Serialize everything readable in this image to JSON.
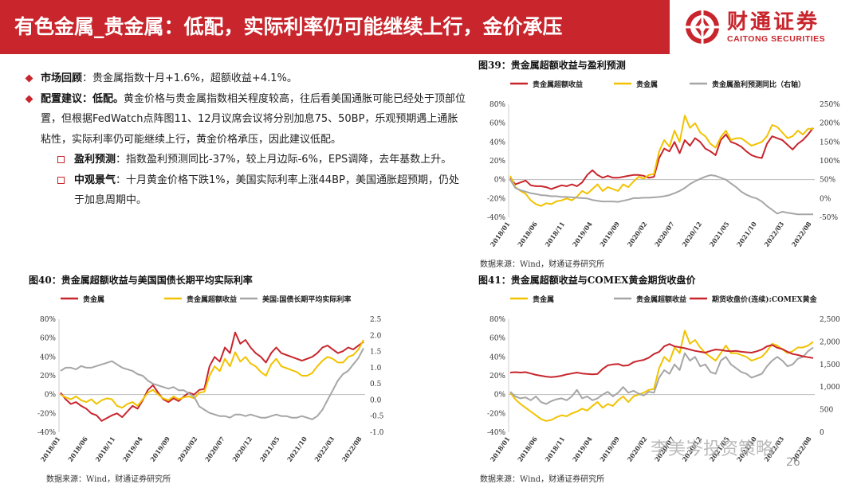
{
  "header": {
    "title": "有色金属_贵金属：低配，实际利率仍可能继续上行，金价承压",
    "logo_cn": "财通证券",
    "logo_en": "CAITONG SECURITIES",
    "bg_color": "#c8252c"
  },
  "text": {
    "b1_label": "市场回顾",
    "b1_text": "：贵金属指数十月+1.6%，超额收益+4.1%。",
    "b2_label": "配置建议：低配。",
    "b2_text": "黄金价格与贵金属指数相关程度较高，往后看美国通胀可能已经处于顶部位置，但根据FedWatch点阵图11、12月议席会议将分别加息75、50BP，乐观预期遇上通胀粘性，实际利率仍可能继续上行，黄金价格承压，因此建议低配。",
    "s1_label": "盈利预测",
    "s1_text": "：指数盈利预测同比-37%，较上月边际-6%，EPS调降，去年基数上升。",
    "s2_label": "中观景气",
    "s2_text": "：十月黄金价格下跌1%，美国实际利率上涨44BP，美国通胀超预期，仍处于加息周期中。"
  },
  "colors": {
    "red": "#c8252c",
    "gold": "#f2c200",
    "gray": "#a6a6a6"
  },
  "x_ticks": [
    "2018/01",
    "2018/06",
    "2018/11",
    "2019/04",
    "2019/09",
    "2020/02",
    "2020/07",
    "2020/12",
    "2021/05",
    "2021/10",
    "2022/03",
    "2022/08"
  ],
  "chart_data": [
    {
      "type": "line",
      "title": "图39：贵金属超额收益与盈利预测",
      "source": "数据来源：Wind，财通证券研究所",
      "x_ticks": [
        "2018/01",
        "2018/06",
        "2018/11",
        "2019/04",
        "2019/09",
        "2020/02",
        "2020/07",
        "2020/12",
        "2021/05",
        "2021/10",
        "2022/03",
        "2022/08"
      ],
      "ylim": [
        -40,
        80
      ],
      "y_ticks": [
        "80%",
        "60%",
        "40%",
        "20%",
        "0%",
        "-20%",
        "-40%"
      ],
      "y2lim": [
        -50,
        250
      ],
      "y2_ticks": [
        "250%",
        "200%",
        "150%",
        "100%",
        "50%",
        "0%",
        "-50%"
      ],
      "series": [
        {
          "name": "贵金属超额收益",
          "color": "#c8252c",
          "axis": "left",
          "values": [
            2,
            -5,
            -3,
            -1,
            -6,
            -7,
            -7,
            -8,
            -10,
            -8,
            -6,
            -7,
            -5,
            -7,
            -3,
            5,
            10,
            5,
            2,
            4,
            2,
            2,
            3,
            4,
            5,
            5,
            4,
            2,
            3,
            23,
            33,
            30,
            40,
            28,
            42,
            36,
            44,
            40,
            33,
            30,
            26,
            42,
            48,
            40,
            38,
            35,
            30,
            26,
            24,
            23,
            38,
            46,
            44,
            42,
            37,
            32,
            38,
            42,
            48,
            55
          ]
        },
        {
          "name": "贵金属",
          "color": "#f2c200",
          "axis": "left",
          "values": [
            4,
            -8,
            -12,
            -15,
            -22,
            -26,
            -28,
            -25,
            -26,
            -23,
            -22,
            -20,
            -22,
            -18,
            -12,
            -15,
            -10,
            -5,
            -12,
            -8,
            -10,
            -12,
            -5,
            -8,
            -2,
            3,
            1,
            5,
            6,
            30,
            42,
            35,
            52,
            40,
            68,
            55,
            60,
            50,
            46,
            38,
            34,
            45,
            52,
            42,
            44,
            44,
            40,
            36,
            38,
            40,
            46,
            58,
            56,
            50,
            44,
            46,
            52,
            48,
            54,
            54
          ]
        },
        {
          "name": "贵金属盈利预测同比（右轴）",
          "color": "#a6a6a6",
          "axis": "right",
          "values": [
            50,
            28,
            22,
            18,
            14,
            12,
            9,
            8,
            6,
            6,
            4,
            4,
            3,
            2,
            1,
            0,
            -4,
            -6,
            -8,
            -8,
            -8,
            -9,
            -6,
            -3,
            1,
            1,
            2,
            2,
            3,
            4,
            6,
            9,
            14,
            20,
            28,
            38,
            46,
            52,
            58,
            62,
            60,
            55,
            50,
            40,
            30,
            18,
            10,
            4,
            0,
            -8,
            -20,
            -30,
            -40,
            -35,
            -38,
            -40,
            -42,
            -42,
            -42,
            -42
          ]
        }
      ]
    },
    {
      "type": "line",
      "title": "图40：贵金属超额收益与美国国债长期平均实际利率",
      "source": "数据来源：Wind，财通证券研究所",
      "x_ticks": [
        "2018/01",
        "2018/06",
        "2018/11",
        "2019/04",
        "2019/09",
        "2020/02",
        "2020/07",
        "2020/12",
        "2021/05",
        "2021/10",
        "2022/03",
        "2022/08"
      ],
      "ylim": [
        -40,
        80
      ],
      "y_ticks": [
        "80%",
        "60%",
        "40%",
        "20%",
        "0%",
        "-20%",
        "-40%"
      ],
      "y2lim": [
        -1.0,
        2.5
      ],
      "y2_ticks": [
        "2.5",
        "2.0",
        "1.5",
        "1.0",
        "0.5",
        "0.0",
        "-0.5",
        "-1.0"
      ],
      "series": [
        {
          "name": "贵金属",
          "color": "#c8252c",
          "axis": "left",
          "values": [
            2,
            -5,
            -10,
            -8,
            -12,
            -15,
            -20,
            -22,
            -28,
            -25,
            -22,
            -20,
            -24,
            -18,
            -12,
            -15,
            -6,
            5,
            10,
            2,
            -5,
            -8,
            -4,
            -7,
            -2,
            2,
            0,
            5,
            6,
            30,
            40,
            35,
            50,
            44,
            66,
            54,
            58,
            50,
            44,
            40,
            34,
            44,
            50,
            44,
            42,
            40,
            38,
            36,
            38,
            40,
            44,
            50,
            52,
            48,
            44,
            46,
            50,
            48,
            52,
            56
          ]
        },
        {
          "name": "贵金属超额收益",
          "color": "#f2c200",
          "axis": "left",
          "values": [
            0,
            -3,
            -5,
            -2,
            -6,
            -8,
            -5,
            -10,
            -6,
            -4,
            -5,
            -12,
            -14,
            -10,
            -8,
            -12,
            -5,
            2,
            5,
            0,
            -4,
            -6,
            -2,
            -5,
            -3,
            -2,
            -4,
            2,
            3,
            20,
            30,
            25,
            38,
            30,
            45,
            35,
            40,
            33,
            30,
            24,
            20,
            32,
            38,
            30,
            28,
            26,
            24,
            20,
            20,
            23,
            30,
            36,
            40,
            38,
            34,
            34,
            40,
            42,
            48,
            58
          ]
        },
        {
          "name": "美国:国债长期平均实际利率",
          "color": "#a6a6a6",
          "axis": "right",
          "values": [
            0.9,
            1.0,
            1.0,
            0.95,
            1.05,
            1.0,
            1.0,
            1.05,
            1.1,
            1.15,
            1.2,
            1.1,
            1.0,
            0.95,
            0.9,
            0.8,
            0.75,
            0.6,
            0.5,
            0.45,
            0.4,
            0.35,
            0.4,
            0.3,
            0.3,
            0.2,
            0.1,
            -0.2,
            -0.3,
            -0.4,
            -0.45,
            -0.5,
            -0.5,
            -0.55,
            -0.45,
            -0.45,
            -0.5,
            -0.45,
            -0.5,
            -0.55,
            -0.55,
            -0.5,
            -0.45,
            -0.5,
            -0.5,
            -0.55,
            -0.55,
            -0.5,
            -0.55,
            -0.6,
            -0.5,
            -0.3,
            0.0,
            0.3,
            0.6,
            0.8,
            0.9,
            1.1,
            1.3,
            1.6
          ]
        }
      ]
    },
    {
      "type": "line",
      "title": "图41：贵金属超额收益与COMEX黄金期货收盘价",
      "source": "数据来源：Wind，财通证券研究所",
      "x_ticks": [
        "2018/01",
        "2018/06",
        "2018/11",
        "2019/04",
        "2019/09",
        "2020/02",
        "2020/07",
        "2020/12",
        "2021/05",
        "2021/10",
        "2022/03",
        "2022/08"
      ],
      "ylim": [
        -40,
        80
      ],
      "y_ticks": [
        "80%",
        "60%",
        "40%",
        "20%",
        "0%",
        "-20%",
        "-40%"
      ],
      "y2lim": [
        0,
        2500
      ],
      "y2_ticks": [
        "2,500",
        "2,000",
        "1,500",
        "1,000",
        "500",
        "0"
      ],
      "series": [
        {
          "name": "贵金属",
          "color": "#f2c200",
          "axis": "left",
          "values": [
            2,
            -5,
            -10,
            -14,
            -18,
            -22,
            -26,
            -28,
            -27,
            -24,
            -22,
            -23,
            -20,
            -18,
            -15,
            -17,
            -12,
            -8,
            -14,
            -10,
            -12,
            -6,
            -2,
            -8,
            -2,
            0,
            2,
            5,
            6,
            28,
            40,
            35,
            50,
            44,
            68,
            54,
            58,
            50,
            44,
            40,
            36,
            44,
            52,
            44,
            44,
            42,
            40,
            36,
            38,
            40,
            46,
            54,
            52,
            48,
            44,
            46,
            50,
            50,
            52,
            56
          ]
        },
        {
          "name": "贵金属超额收益",
          "color": "#a6a6a6",
          "axis": "left",
          "values": [
            3,
            -2,
            -4,
            -3,
            -6,
            -2,
            -8,
            -10,
            -7,
            -5,
            -4,
            -6,
            -2,
            5,
            -4,
            -2,
            -6,
            -4,
            0,
            3,
            -2,
            2,
            8,
            2,
            4,
            1,
            -1,
            3,
            2,
            18,
            26,
            22,
            32,
            26,
            44,
            36,
            40,
            30,
            32,
            24,
            22,
            36,
            40,
            32,
            28,
            24,
            22,
            18,
            20,
            22,
            30,
            36,
            40,
            36,
            30,
            32,
            38,
            40,
            46,
            50
          ]
        },
        {
          "name": "期货收盘价(连续):COMEX黄金",
          "color": "#c8252c",
          "axis": "right",
          "values": [
            1320,
            1330,
            1320,
            1330,
            1300,
            1270,
            1250,
            1230,
            1220,
            1230,
            1250,
            1280,
            1300,
            1320,
            1300,
            1290,
            1280,
            1290,
            1400,
            1480,
            1500,
            1510,
            1470,
            1480,
            1550,
            1580,
            1600,
            1650,
            1730,
            1780,
            1900,
            1950,
            1900,
            1880,
            1860,
            1830,
            1800,
            1780,
            1760,
            1800,
            1830,
            1820,
            1800,
            1790,
            1800,
            1780,
            1770,
            1760,
            1790,
            1830,
            1900,
            1930,
            1870,
            1840,
            1780,
            1730,
            1710,
            1680,
            1660,
            1640
          ]
        }
      ]
    }
  ],
  "footer": {
    "page_number": "26",
    "watermark": "李美岑投资策略"
  }
}
